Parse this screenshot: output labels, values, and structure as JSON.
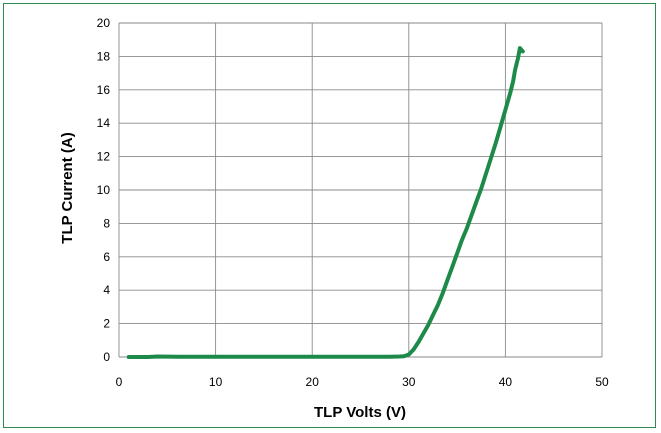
{
  "chart_data": {
    "type": "line",
    "title": "",
    "xlabel": "TLP Volts (V)",
    "ylabel": "TLP Current (A)",
    "xlim": [
      0,
      50
    ],
    "ylim": [
      0,
      20
    ],
    "xticks": [
      0,
      10,
      20,
      30,
      40,
      50
    ],
    "yticks": [
      0,
      2,
      4,
      6,
      8,
      10,
      12,
      14,
      16,
      18,
      20
    ],
    "grid": true,
    "legend": "none",
    "colors": {
      "series": "#1e8a4a",
      "border": "#2d8b4f",
      "grid": "#8a8a8a"
    },
    "series": [
      {
        "name": "",
        "x": [
          1.0,
          2.0,
          3.0,
          4.0,
          6.0,
          8.0,
          10.0,
          12.0,
          14.0,
          16.0,
          18.0,
          20.0,
          22.0,
          24.0,
          26.0,
          28.0,
          29.0,
          29.5,
          30.0,
          30.5,
          31.0,
          31.5,
          32.0,
          32.5,
          33.0,
          33.5,
          34.0,
          34.5,
          35.0,
          35.5,
          36.0,
          36.5,
          37.0,
          37.5,
          38.0,
          38.5,
          39.0,
          39.5,
          40.0,
          40.5,
          40.8,
          41.0,
          41.3,
          41.5,
          41.8
        ],
        "y": [
          0.0,
          0.0,
          0.0,
          0.03,
          0.02,
          0.02,
          0.02,
          0.02,
          0.02,
          0.02,
          0.02,
          0.02,
          0.02,
          0.02,
          0.02,
          0.02,
          0.03,
          0.05,
          0.15,
          0.45,
          0.9,
          1.4,
          1.9,
          2.5,
          3.1,
          3.8,
          4.6,
          5.4,
          6.2,
          7.0,
          7.7,
          8.5,
          9.3,
          10.1,
          11.0,
          11.9,
          12.8,
          13.8,
          14.8,
          15.8,
          16.5,
          17.2,
          17.9,
          18.5,
          18.3
        ]
      }
    ]
  }
}
